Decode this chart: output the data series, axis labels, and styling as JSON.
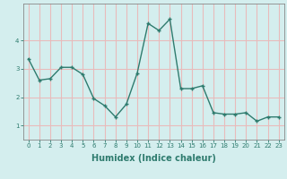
{
  "x": [
    0,
    1,
    2,
    3,
    4,
    5,
    6,
    7,
    8,
    9,
    10,
    11,
    12,
    13,
    14,
    15,
    16,
    17,
    18,
    19,
    20,
    21,
    22,
    23
  ],
  "y": [
    3.35,
    2.6,
    2.65,
    3.05,
    3.05,
    2.8,
    1.95,
    1.7,
    1.3,
    1.75,
    2.85,
    4.6,
    4.35,
    4.75,
    2.3,
    2.3,
    2.4,
    1.45,
    1.4,
    1.4,
    1.45,
    1.15,
    1.3,
    1.3
  ],
  "line_color": "#2e7b6e",
  "marker": "+",
  "marker_size": 3,
  "bg_color": "#d4eeee",
  "grid_color": "#e8bbbb",
  "xlabel": "Humidex (Indice chaleur)",
  "ylim": [
    0.5,
    5.3
  ],
  "xlim": [
    -0.5,
    23.5
  ],
  "yticks": [
    1,
    2,
    3,
    4
  ],
  "xticks": [
    0,
    1,
    2,
    3,
    4,
    5,
    6,
    7,
    8,
    9,
    10,
    11,
    12,
    13,
    14,
    15,
    16,
    17,
    18,
    19,
    20,
    21,
    22,
    23
  ],
  "label_fontsize": 7,
  "tick_fontsize": 5,
  "linewidth": 1.0
}
